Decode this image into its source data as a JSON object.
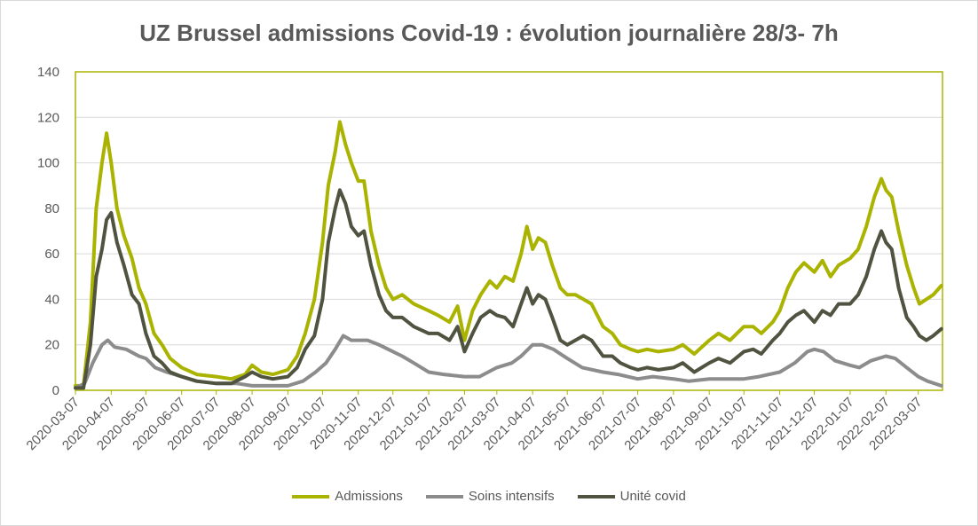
{
  "chart_data": {
    "type": "line",
    "title": "UZ Brussel admissions Covid-19 : évolution journalière 28/3- 7h",
    "xlabel": "",
    "ylabel": "",
    "ylim": [
      0,
      140
    ],
    "yticks": [
      0,
      20,
      40,
      60,
      80,
      100,
      120,
      140
    ],
    "x_tick_labels": [
      "2020-03-07",
      "2020-04-07",
      "2020-05-07",
      "2020-06-07",
      "2020-07-07",
      "2020-08-07",
      "2020-09-07",
      "2020-10-07",
      "2020-11-07",
      "2020-12-07",
      "2021-01-07",
      "2021-02-07",
      "2021-03-07",
      "2021-04-07",
      "2021-05-07",
      "2021-06-07",
      "2021-07-07",
      "2021-08-07",
      "2021-09-07",
      "2021-10-07",
      "2021-11-07",
      "2021-12-07",
      "2022-01-07",
      "2022-02-07",
      "2022-03-07"
    ],
    "grid": true,
    "legend_position": "bottom",
    "colors": {
      "admissions": "#aab400",
      "soins": "#8c8c8c",
      "unite": "#4f5340",
      "axis": "#aab400",
      "grid": "#d9d9d9"
    },
    "series": [
      {
        "name": "Admissions",
        "color": "#aab400",
        "points": [
          [
            "2020-03-07",
            2
          ],
          [
            "2020-03-14",
            2
          ],
          [
            "2020-03-20",
            30
          ],
          [
            "2020-03-25",
            80
          ],
          [
            "2020-03-30",
            100
          ],
          [
            "2020-04-03",
            113
          ],
          [
            "2020-04-07",
            100
          ],
          [
            "2020-04-12",
            80
          ],
          [
            "2020-04-18",
            68
          ],
          [
            "2020-04-25",
            58
          ],
          [
            "2020-05-01",
            45
          ],
          [
            "2020-05-07",
            38
          ],
          [
            "2020-05-14",
            25
          ],
          [
            "2020-05-21",
            20
          ],
          [
            "2020-05-28",
            14
          ],
          [
            "2020-06-07",
            10
          ],
          [
            "2020-06-20",
            7
          ],
          [
            "2020-07-07",
            6
          ],
          [
            "2020-07-20",
            5
          ],
          [
            "2020-08-01",
            7
          ],
          [
            "2020-08-07",
            11
          ],
          [
            "2020-08-15",
            8
          ],
          [
            "2020-08-25",
            7
          ],
          [
            "2020-09-07",
            9
          ],
          [
            "2020-09-15",
            15
          ],
          [
            "2020-09-22",
            25
          ],
          [
            "2020-09-30",
            40
          ],
          [
            "2020-10-07",
            65
          ],
          [
            "2020-10-12",
            90
          ],
          [
            "2020-10-18",
            105
          ],
          [
            "2020-10-22",
            118
          ],
          [
            "2020-10-27",
            108
          ],
          [
            "2020-11-01",
            100
          ],
          [
            "2020-11-07",
            92
          ],
          [
            "2020-11-12",
            92
          ],
          [
            "2020-11-18",
            70
          ],
          [
            "2020-11-25",
            55
          ],
          [
            "2020-12-01",
            45
          ],
          [
            "2020-12-07",
            40
          ],
          [
            "2020-12-15",
            42
          ],
          [
            "2020-12-25",
            38
          ],
          [
            "2021-01-07",
            35
          ],
          [
            "2021-01-15",
            33
          ],
          [
            "2021-01-25",
            30
          ],
          [
            "2021-02-01",
            37
          ],
          [
            "2021-02-07",
            22
          ],
          [
            "2021-02-14",
            35
          ],
          [
            "2021-02-21",
            42
          ],
          [
            "2021-03-01",
            48
          ],
          [
            "2021-03-07",
            45
          ],
          [
            "2021-03-14",
            50
          ],
          [
            "2021-03-21",
            48
          ],
          [
            "2021-03-28",
            60
          ],
          [
            "2021-04-02",
            72
          ],
          [
            "2021-04-07",
            62
          ],
          [
            "2021-04-12",
            67
          ],
          [
            "2021-04-18",
            65
          ],
          [
            "2021-04-24",
            55
          ],
          [
            "2021-05-01",
            45
          ],
          [
            "2021-05-07",
            42
          ],
          [
            "2021-05-14",
            42
          ],
          [
            "2021-05-21",
            40
          ],
          [
            "2021-05-28",
            38
          ],
          [
            "2021-06-07",
            28
          ],
          [
            "2021-06-15",
            25
          ],
          [
            "2021-06-22",
            20
          ],
          [
            "2021-07-01",
            18
          ],
          [
            "2021-07-07",
            17
          ],
          [
            "2021-07-15",
            18
          ],
          [
            "2021-07-25",
            17
          ],
          [
            "2021-08-07",
            18
          ],
          [
            "2021-08-15",
            20
          ],
          [
            "2021-08-25",
            16
          ],
          [
            "2021-09-07",
            22
          ],
          [
            "2021-09-15",
            25
          ],
          [
            "2021-09-25",
            22
          ],
          [
            "2021-10-07",
            28
          ],
          [
            "2021-10-15",
            28
          ],
          [
            "2021-10-22",
            25
          ],
          [
            "2021-11-01",
            30
          ],
          [
            "2021-11-07",
            35
          ],
          [
            "2021-11-14",
            45
          ],
          [
            "2021-11-21",
            52
          ],
          [
            "2021-11-28",
            56
          ],
          [
            "2021-12-07",
            52
          ],
          [
            "2021-12-14",
            57
          ],
          [
            "2021-12-21",
            50
          ],
          [
            "2021-12-28",
            55
          ],
          [
            "2022-01-07",
            58
          ],
          [
            "2022-01-14",
            62
          ],
          [
            "2022-01-21",
            72
          ],
          [
            "2022-01-28",
            85
          ],
          [
            "2022-02-03",
            93
          ],
          [
            "2022-02-07",
            88
          ],
          [
            "2022-02-12",
            85
          ],
          [
            "2022-02-18",
            70
          ],
          [
            "2022-02-25",
            55
          ],
          [
            "2022-03-03",
            45
          ],
          [
            "2022-03-08",
            38
          ],
          [
            "2022-03-14",
            40
          ],
          [
            "2022-03-20",
            42
          ],
          [
            "2022-03-27",
            46
          ]
        ]
      },
      {
        "name": "Soins intensifs",
        "color": "#8c8c8c",
        "points": [
          [
            "2020-03-07",
            1
          ],
          [
            "2020-03-15",
            3
          ],
          [
            "2020-03-22",
            12
          ],
          [
            "2020-03-30",
            20
          ],
          [
            "2020-04-04",
            22
          ],
          [
            "2020-04-10",
            19
          ],
          [
            "2020-04-20",
            18
          ],
          [
            "2020-05-01",
            15
          ],
          [
            "2020-05-07",
            14
          ],
          [
            "2020-05-15",
            10
          ],
          [
            "2020-05-25",
            8
          ],
          [
            "2020-06-07",
            6
          ],
          [
            "2020-06-20",
            4
          ],
          [
            "2020-07-07",
            3
          ],
          [
            "2020-07-25",
            3
          ],
          [
            "2020-08-07",
            2
          ],
          [
            "2020-08-20",
            2
          ],
          [
            "2020-09-07",
            2
          ],
          [
            "2020-09-20",
            4
          ],
          [
            "2020-10-01",
            8
          ],
          [
            "2020-10-10",
            12
          ],
          [
            "2020-10-18",
            18
          ],
          [
            "2020-10-25",
            24
          ],
          [
            "2020-11-01",
            22
          ],
          [
            "2020-11-07",
            22
          ],
          [
            "2020-11-15",
            22
          ],
          [
            "2020-11-25",
            20
          ],
          [
            "2020-12-07",
            17
          ],
          [
            "2020-12-15",
            15
          ],
          [
            "2020-12-25",
            12
          ],
          [
            "2021-01-07",
            8
          ],
          [
            "2021-01-20",
            7
          ],
          [
            "2021-02-07",
            6
          ],
          [
            "2021-02-20",
            6
          ],
          [
            "2021-03-07",
            10
          ],
          [
            "2021-03-20",
            12
          ],
          [
            "2021-03-28",
            15
          ],
          [
            "2021-04-07",
            20
          ],
          [
            "2021-04-15",
            20
          ],
          [
            "2021-04-25",
            18
          ],
          [
            "2021-05-07",
            14
          ],
          [
            "2021-05-20",
            10
          ],
          [
            "2021-06-07",
            8
          ],
          [
            "2021-06-20",
            7
          ],
          [
            "2021-07-07",
            5
          ],
          [
            "2021-07-20",
            6
          ],
          [
            "2021-08-07",
            5
          ],
          [
            "2021-08-20",
            4
          ],
          [
            "2021-09-07",
            5
          ],
          [
            "2021-09-20",
            5
          ],
          [
            "2021-10-07",
            5
          ],
          [
            "2021-10-20",
            6
          ],
          [
            "2021-11-07",
            8
          ],
          [
            "2021-11-20",
            12
          ],
          [
            "2021-12-01",
            17
          ],
          [
            "2021-12-07",
            18
          ],
          [
            "2021-12-15",
            17
          ],
          [
            "2021-12-25",
            13
          ],
          [
            "2022-01-07",
            11
          ],
          [
            "2022-01-15",
            10
          ],
          [
            "2022-01-25",
            13
          ],
          [
            "2022-02-07",
            15
          ],
          [
            "2022-02-15",
            14
          ],
          [
            "2022-02-25",
            10
          ],
          [
            "2022-03-07",
            6
          ],
          [
            "2022-03-15",
            4
          ],
          [
            "2022-03-27",
            2
          ]
        ]
      },
      {
        "name": "Unité covid",
        "color": "#4f5340",
        "points": [
          [
            "2020-03-07",
            1
          ],
          [
            "2020-03-14",
            1
          ],
          [
            "2020-03-20",
            20
          ],
          [
            "2020-03-25",
            50
          ],
          [
            "2020-03-30",
            62
          ],
          [
            "2020-04-03",
            75
          ],
          [
            "2020-04-07",
            78
          ],
          [
            "2020-04-12",
            65
          ],
          [
            "2020-04-18",
            55
          ],
          [
            "2020-04-25",
            42
          ],
          [
            "2020-05-01",
            38
          ],
          [
            "2020-05-07",
            25
          ],
          [
            "2020-05-14",
            15
          ],
          [
            "2020-05-21",
            12
          ],
          [
            "2020-05-28",
            8
          ],
          [
            "2020-06-07",
            6
          ],
          [
            "2020-06-20",
            4
          ],
          [
            "2020-07-07",
            3
          ],
          [
            "2020-07-20",
            3
          ],
          [
            "2020-08-01",
            6
          ],
          [
            "2020-08-07",
            8
          ],
          [
            "2020-08-15",
            6
          ],
          [
            "2020-08-25",
            5
          ],
          [
            "2020-09-07",
            6
          ],
          [
            "2020-09-15",
            10
          ],
          [
            "2020-09-22",
            18
          ],
          [
            "2020-09-30",
            24
          ],
          [
            "2020-10-07",
            40
          ],
          [
            "2020-10-12",
            65
          ],
          [
            "2020-10-18",
            80
          ],
          [
            "2020-10-22",
            88
          ],
          [
            "2020-10-27",
            82
          ],
          [
            "2020-11-01",
            72
          ],
          [
            "2020-11-07",
            68
          ],
          [
            "2020-11-12",
            70
          ],
          [
            "2020-11-18",
            55
          ],
          [
            "2020-11-25",
            42
          ],
          [
            "2020-12-01",
            35
          ],
          [
            "2020-12-07",
            32
          ],
          [
            "2020-12-15",
            32
          ],
          [
            "2020-12-25",
            28
          ],
          [
            "2021-01-07",
            25
          ],
          [
            "2021-01-15",
            25
          ],
          [
            "2021-01-25",
            22
          ],
          [
            "2021-02-01",
            28
          ],
          [
            "2021-02-07",
            17
          ],
          [
            "2021-02-14",
            25
          ],
          [
            "2021-02-21",
            32
          ],
          [
            "2021-03-01",
            35
          ],
          [
            "2021-03-07",
            33
          ],
          [
            "2021-03-14",
            32
          ],
          [
            "2021-03-21",
            28
          ],
          [
            "2021-03-28",
            38
          ],
          [
            "2021-04-02",
            45
          ],
          [
            "2021-04-07",
            38
          ],
          [
            "2021-04-12",
            42
          ],
          [
            "2021-04-18",
            40
          ],
          [
            "2021-04-24",
            32
          ],
          [
            "2021-05-01",
            22
          ],
          [
            "2021-05-07",
            20
          ],
          [
            "2021-05-14",
            22
          ],
          [
            "2021-05-21",
            24
          ],
          [
            "2021-05-28",
            22
          ],
          [
            "2021-06-07",
            15
          ],
          [
            "2021-06-15",
            15
          ],
          [
            "2021-06-22",
            12
          ],
          [
            "2021-07-01",
            10
          ],
          [
            "2021-07-07",
            9
          ],
          [
            "2021-07-15",
            10
          ],
          [
            "2021-07-25",
            9
          ],
          [
            "2021-08-07",
            10
          ],
          [
            "2021-08-15",
            12
          ],
          [
            "2021-08-25",
            8
          ],
          [
            "2021-09-07",
            12
          ],
          [
            "2021-09-15",
            14
          ],
          [
            "2021-09-25",
            12
          ],
          [
            "2021-10-07",
            17
          ],
          [
            "2021-10-15",
            18
          ],
          [
            "2021-10-22",
            16
          ],
          [
            "2021-11-01",
            22
          ],
          [
            "2021-11-07",
            25
          ],
          [
            "2021-11-14",
            30
          ],
          [
            "2021-11-21",
            33
          ],
          [
            "2021-11-28",
            35
          ],
          [
            "2021-12-07",
            30
          ],
          [
            "2021-12-14",
            35
          ],
          [
            "2021-12-21",
            33
          ],
          [
            "2021-12-28",
            38
          ],
          [
            "2022-01-07",
            38
          ],
          [
            "2022-01-14",
            42
          ],
          [
            "2022-01-21",
            50
          ],
          [
            "2022-01-28",
            62
          ],
          [
            "2022-02-03",
            70
          ],
          [
            "2022-02-07",
            65
          ],
          [
            "2022-02-12",
            62
          ],
          [
            "2022-02-18",
            45
          ],
          [
            "2022-02-25",
            32
          ],
          [
            "2022-03-03",
            28
          ],
          [
            "2022-03-08",
            24
          ],
          [
            "2022-03-14",
            22
          ],
          [
            "2022-03-20",
            24
          ],
          [
            "2022-03-27",
            27
          ]
        ]
      }
    ]
  }
}
